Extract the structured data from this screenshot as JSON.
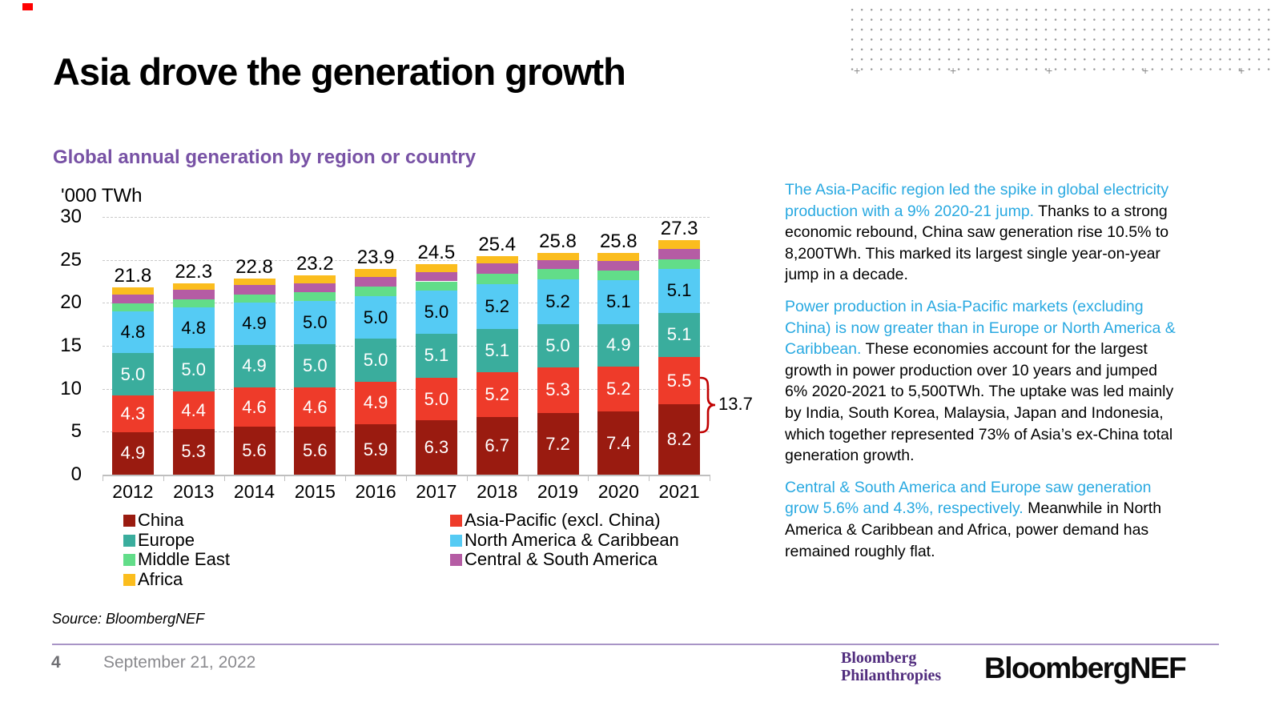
{
  "colors": {
    "accent_blue": "#29A9E1",
    "subtitle_purple": "#7852A5",
    "brand_purple": "#512D7E",
    "divider_purple": "#A894C6",
    "bracket_red": "#C00000",
    "corner_red": "#FF0000"
  },
  "slide": {
    "title": "Asia drove the generation growth",
    "source": "Source: BloombergNEF",
    "page_number": "4",
    "date": "September 21, 2022",
    "logo_philanthropies_line1": "Bloomberg",
    "logo_philanthropies_line2": "Philanthropies",
    "logo_bnef": "BloombergNEF"
  },
  "commentary": [
    {
      "lead": "The Asia-Pacific region led the spike in global electricity production with a 9% 2020-21 jump.",
      "rest": " Thanks to a strong economic rebound, China saw generation rise 10.5% to 8,200TWh. This marked its largest single year-on-year jump in a decade."
    },
    {
      "lead": "Power production in Asia-Pacific markets (excluding China) is now greater than in Europe or North America & Caribbean.",
      "rest": " These economies account for the largest growth in power production over 10 years and jumped 6% 2020-2021 to 5,500TWh. The uptake was led mainly by India, South Korea, Malaysia, Japan and Indonesia, which together represented 73% of Asia’s ex-China total generation growth."
    },
    {
      "lead": "Central & South America and Europe saw generation grow 5.6% and 4.3%, respectively.",
      "rest": " Meanwhile in North America & Caribbean and Africa, power demand has remained roughly flat."
    }
  ],
  "chart_data": {
    "type": "bar",
    "stacked": true,
    "title": "Global annual generation by region or country",
    "ylabel": "'000 TWh",
    "ylim": [
      0,
      30
    ],
    "yticks": [
      0,
      5,
      10,
      15,
      20,
      25,
      30
    ],
    "grid": "horizontal-dashed",
    "categories": [
      "2012",
      "2013",
      "2014",
      "2015",
      "2016",
      "2017",
      "2018",
      "2019",
      "2020",
      "2021"
    ],
    "series": [
      {
        "name": "China",
        "color": "#9A1B10",
        "label_color": "#FFFFFF",
        "labels_shown": true,
        "values": [
          4.9,
          5.3,
          5.6,
          5.6,
          5.9,
          6.3,
          6.7,
          7.2,
          7.4,
          8.2
        ]
      },
      {
        "name": "Asia-Pacific (excl. China)",
        "color": "#EE3B2A",
        "label_color": "#FFFFFF",
        "labels_shown": true,
        "values": [
          4.3,
          4.4,
          4.6,
          4.6,
          4.9,
          5.0,
          5.2,
          5.3,
          5.2,
          5.5
        ]
      },
      {
        "name": "Europe",
        "color": "#3AAD9D",
        "label_color": "#FFFFFF",
        "labels_shown": true,
        "values": [
          5.0,
          5.0,
          4.9,
          5.0,
          5.0,
          5.1,
          5.1,
          5.0,
          4.9,
          5.1
        ]
      },
      {
        "name": "North America & Caribbean",
        "color": "#55CBF4",
        "label_color": "#000000",
        "labels_shown": true,
        "values": [
          4.8,
          4.8,
          4.9,
          5.0,
          5.0,
          5.0,
          5.2,
          5.2,
          5.1,
          5.1
        ]
      },
      {
        "name": "Middle East",
        "color": "#62DD89",
        "labels_shown": false,
        "values": [
          0.9,
          0.9,
          1.0,
          1.0,
          1.1,
          1.1,
          1.2,
          1.2,
          1.2,
          1.2
        ]
      },
      {
        "name": "Central & South America",
        "color": "#B55CA4",
        "labels_shown": false,
        "values": [
          1.1,
          1.1,
          1.1,
          1.1,
          1.1,
          1.1,
          1.2,
          1.1,
          1.1,
          1.2
        ]
      },
      {
        "name": "Africa",
        "color": "#FBBD1E",
        "labels_shown": false,
        "values": [
          0.8,
          0.8,
          0.7,
          0.9,
          0.9,
          0.9,
          0.8,
          0.8,
          0.9,
          1.0
        ]
      }
    ],
    "totals": [
      21.8,
      22.3,
      22.8,
      23.2,
      23.9,
      24.5,
      25.4,
      25.8,
      25.8,
      27.3
    ],
    "annotation": {
      "text": "13.7",
      "meaning": "China plus Asia-Pacific (excl. China) total in 2021"
    },
    "legend": {
      "left_column": [
        "China",
        "Europe",
        "Middle East",
        "Africa"
      ],
      "right_column": [
        "Asia-Pacific (excl. China)",
        "North America & Caribbean",
        "Central & South America"
      ]
    },
    "legend_position": "bottom"
  }
}
